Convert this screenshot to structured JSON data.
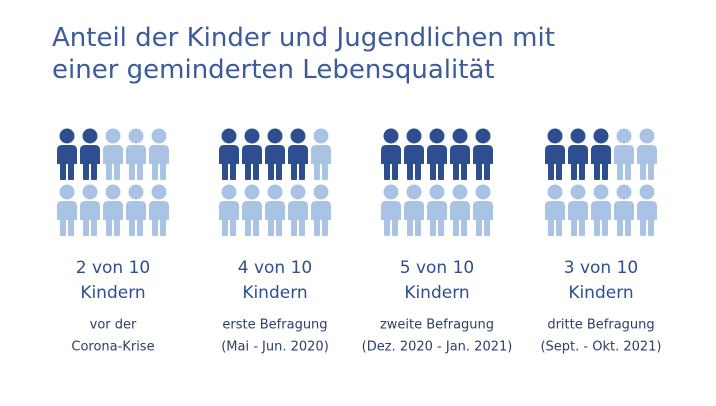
{
  "chart_data": {
    "type": "pictogram",
    "title": "Anteil der Kinder und Jugendlichen mit einer geminderten Lebensqualität",
    "total": 10,
    "values": [
      2,
      4,
      5,
      3
    ],
    "value_labels": [
      "2 von 10",
      "4 von 10",
      "5 von 10",
      "3 von 10"
    ],
    "unit": "Kindern",
    "categories": [
      [
        "vor der",
        "Corona-Krise"
      ],
      [
        "erste Befragung",
        "(Mai - Jun. 2020)"
      ],
      [
        "zweite Befragung",
        "(Dez. 2020 - Jan. 2021)"
      ],
      [
        "dritte Befragung",
        "(Sept. - Okt. 2021)"
      ]
    ],
    "color": "#2d4f8f",
    "rest_color": "#a9c3e4"
  }
}
